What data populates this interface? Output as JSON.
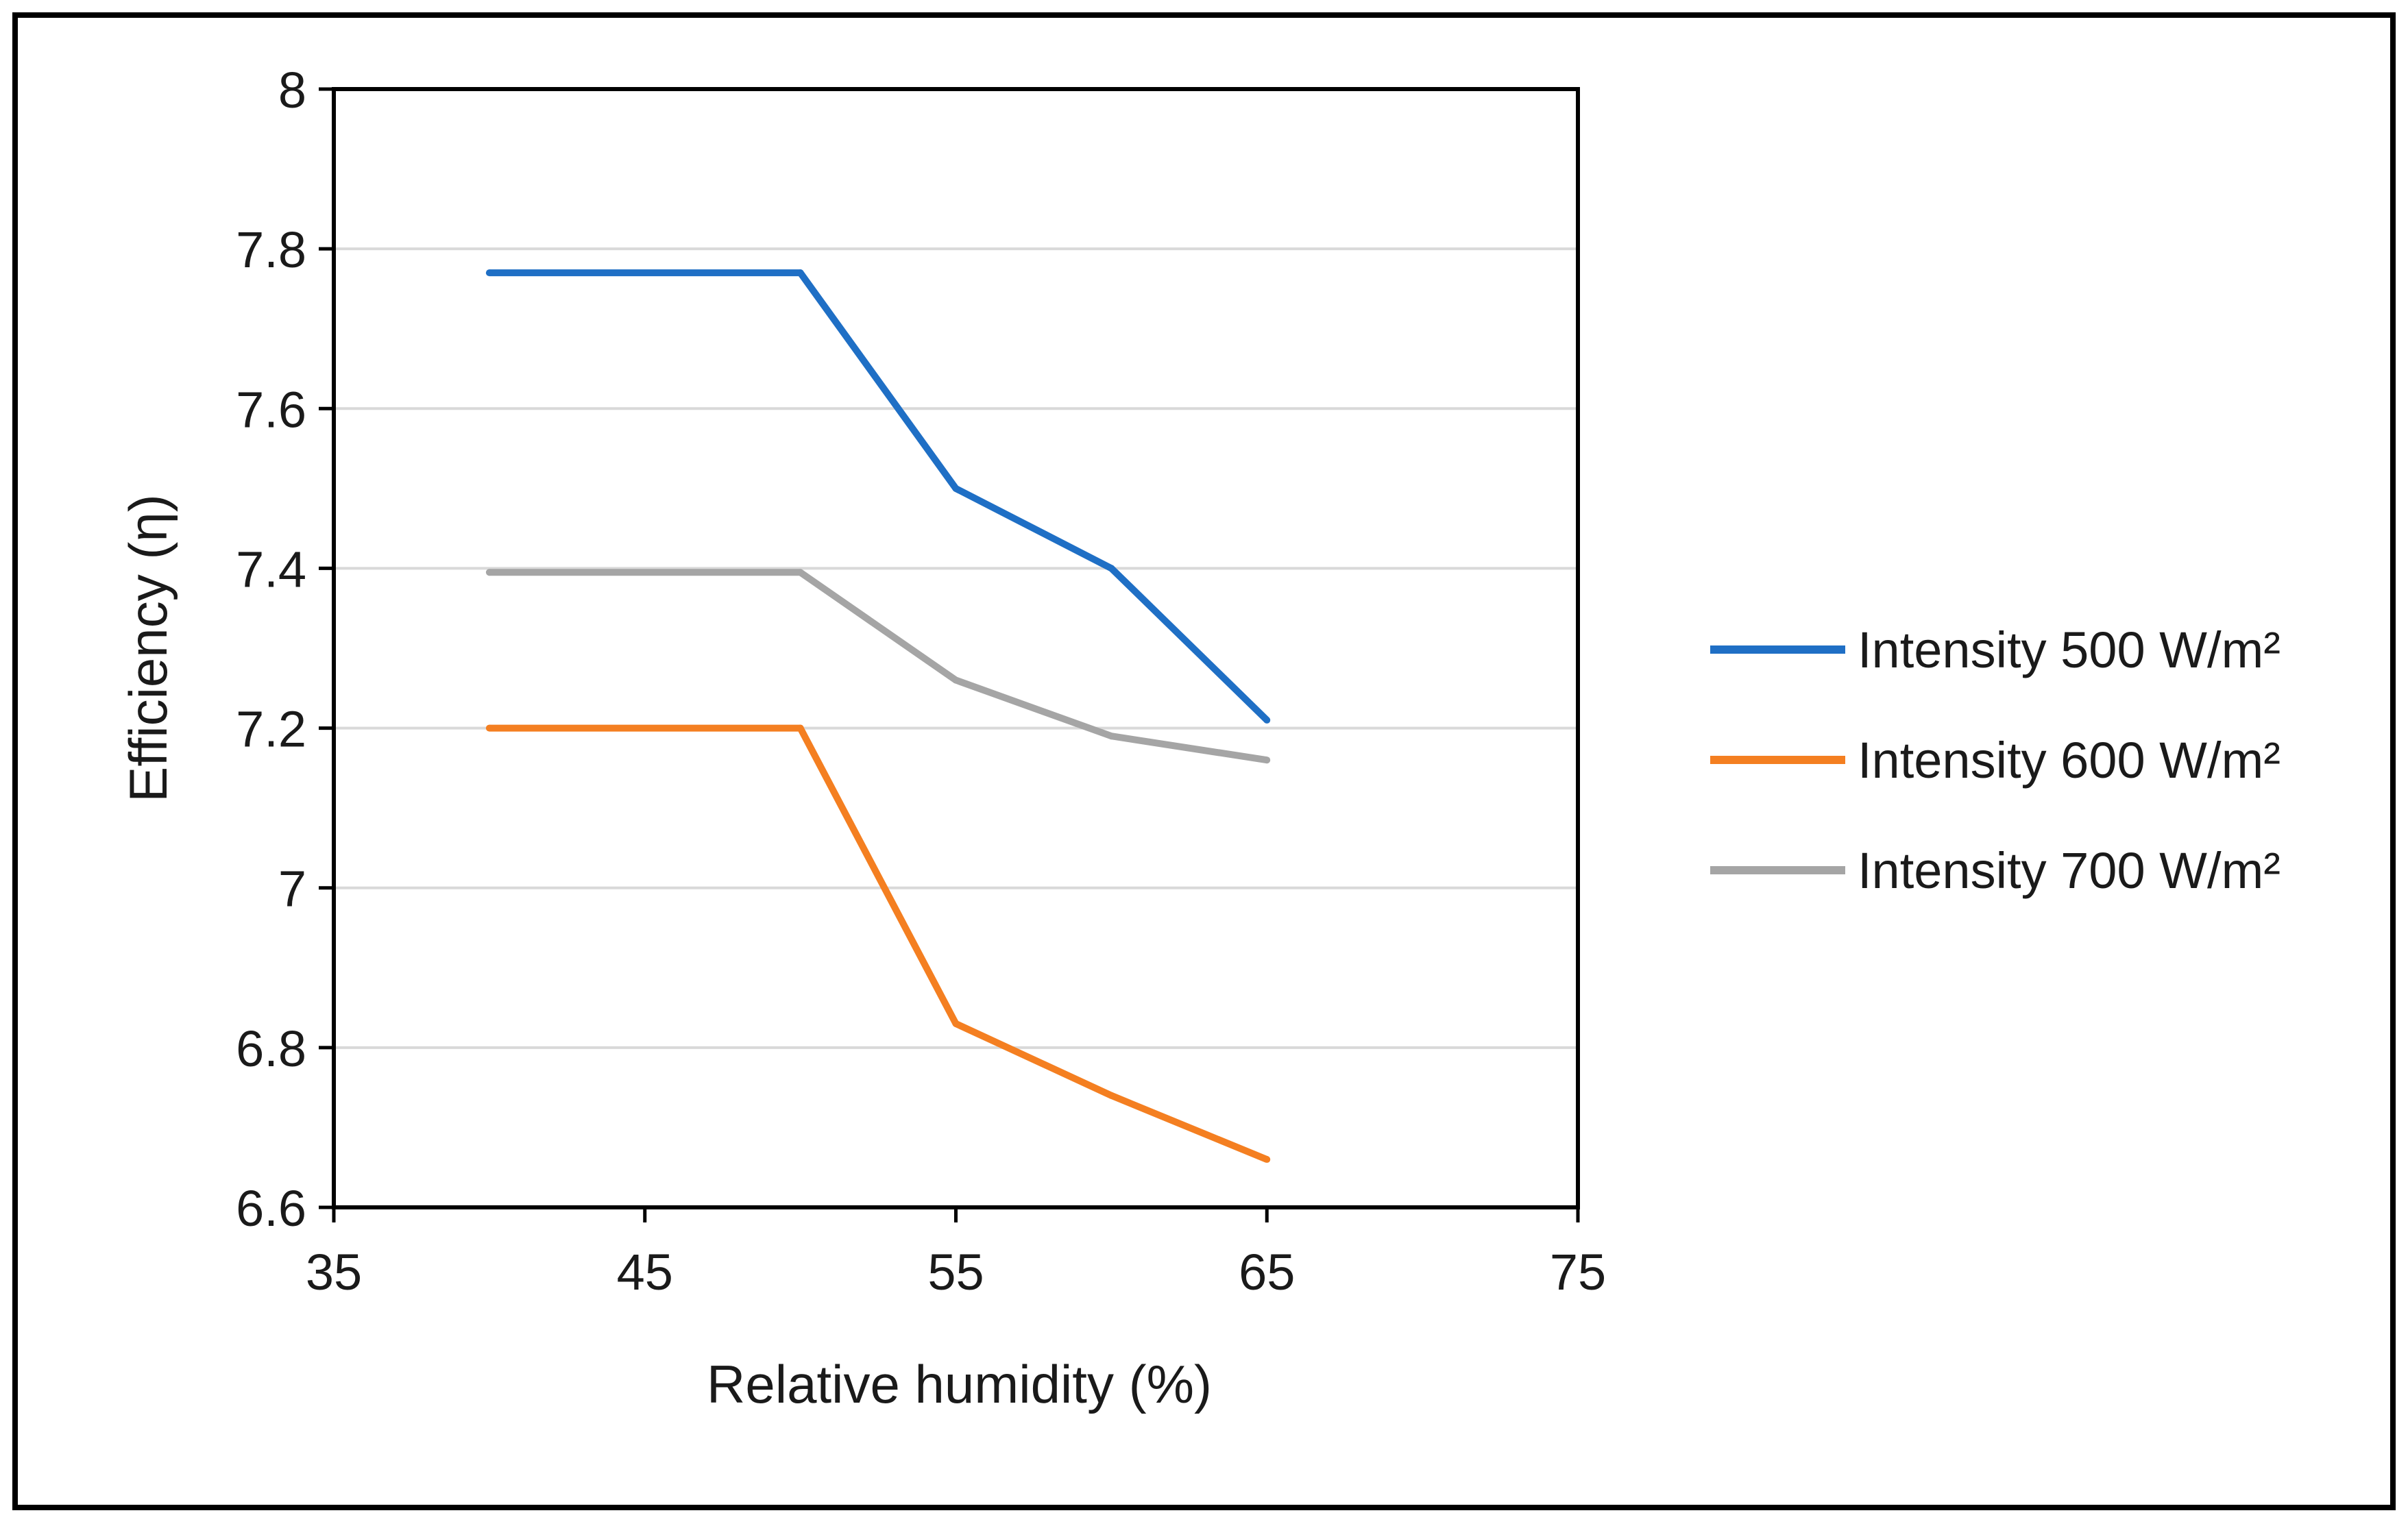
{
  "chart_data": {
    "type": "line",
    "title": "",
    "xlabel": "Relative humidity  (%)",
    "ylabel": "Efficiency (η)",
    "xlim": [
      35,
      75
    ],
    "ylim": [
      6.6,
      8
    ],
    "xticks": [
      35,
      45,
      55,
      65,
      75
    ],
    "yticks": [
      6.6,
      6.8,
      7,
      7.2,
      7.4,
      7.6,
      7.8,
      8
    ],
    "xtick_labels": [
      "35",
      "45",
      "55",
      "65",
      "75"
    ],
    "ytick_labels": [
      "6.6",
      "6.8",
      "7",
      "7.2",
      "7.4",
      "7.6",
      "7.8",
      "8"
    ],
    "grid": true,
    "legend_position": "right",
    "x": [
      40,
      50,
      55,
      60,
      65
    ],
    "series": [
      {
        "name": "Intensity 500 W/m²",
        "color": "#1f6fc5",
        "values": [
          7.77,
          7.77,
          7.5,
          7.4,
          7.21
        ]
      },
      {
        "name": "Intensity 600 W/m²",
        "color": "#f47f21",
        "values": [
          7.2,
          7.2,
          6.83,
          6.74,
          6.66
        ]
      },
      {
        "name": "Intensity 700 W/m²",
        "color": "#a5a5a5",
        "values": [
          7.395,
          7.395,
          7.26,
          7.19,
          7.16
        ]
      }
    ]
  }
}
